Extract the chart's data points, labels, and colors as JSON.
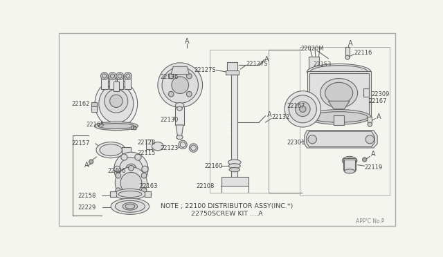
{
  "background_color": "#f5f5f0",
  "border_color": "#999999",
  "line_color": "#666666",
  "text_color": "#444444",
  "note_text": "NOTE ; 22100 DISTRIBUTOR ASSY(INC.*)",
  "note_text2": "22750SCREW KIT ....A",
  "watermark": "APP'C No.P",
  "figsize": [
    6.4,
    3.72
  ],
  "dpi": 100
}
